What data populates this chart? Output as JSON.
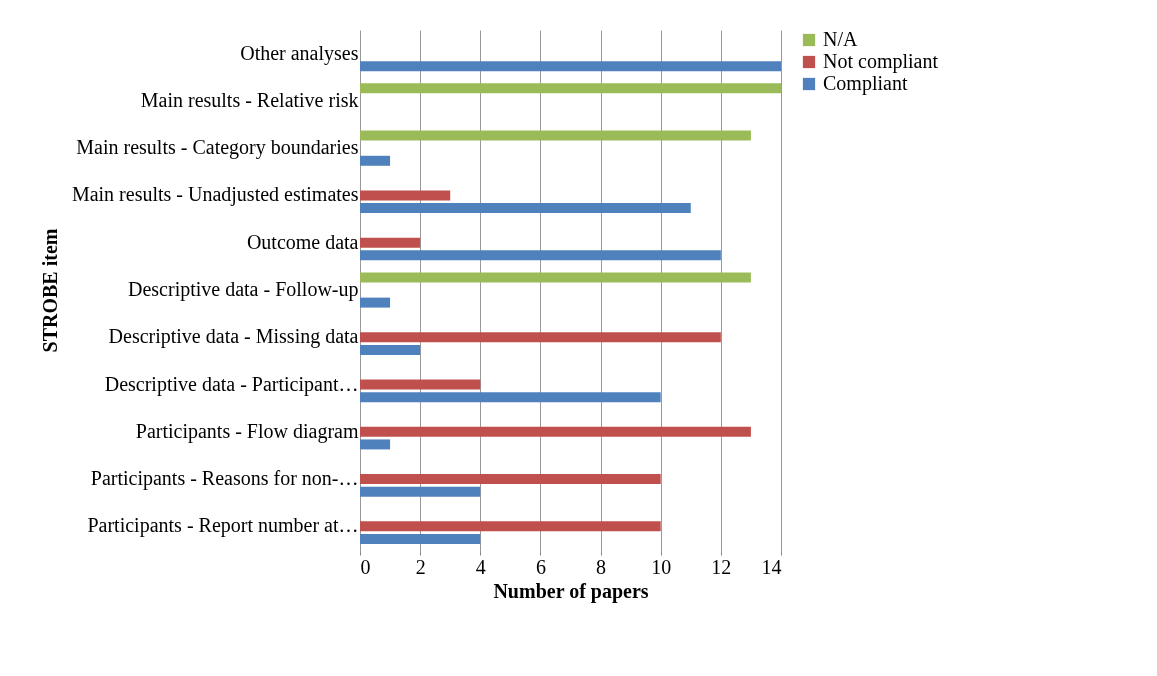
{
  "chart_data": {
    "type": "bar",
    "orientation": "horizontal",
    "xlabel": "Number of papers",
    "ylabel": "STROBE item",
    "categories": [
      "Other analyses",
      "Main results - Relative risk",
      "Main results - Category boundaries",
      "Main results - Unadjusted estimates",
      "Outcome data",
      "Descriptive data - Follow-up",
      "Descriptive data - Missing data",
      "Descriptive data - Participant…",
      "Participants - Flow diagram",
      "Participants - Reasons for non-…",
      "Participants - Report number  at…"
    ],
    "series": [
      {
        "name": "N/A",
        "color": "#9bbb59",
        "values": [
          null,
          14,
          13,
          null,
          null,
          13,
          null,
          null,
          null,
          null,
          null
        ]
      },
      {
        "name": "Not compliant",
        "color": "#c0504d",
        "values": [
          null,
          null,
          null,
          3,
          2,
          null,
          12,
          4,
          13,
          10,
          10
        ]
      },
      {
        "name": "Compliant",
        "color": "#4f81bd",
        "values": [
          14,
          null,
          1,
          11,
          12,
          1,
          2,
          10,
          1,
          4,
          4
        ]
      }
    ],
    "xlim": [
      0,
      14
    ],
    "xticks": [
      0,
      2,
      4,
      6,
      8,
      10,
      12,
      14
    ],
    "grid": "x",
    "legend": "right"
  }
}
